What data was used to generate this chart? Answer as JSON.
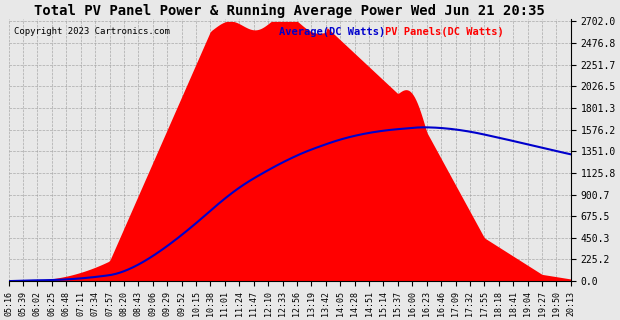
{
  "title": "Total PV Panel Power & Running Average Power Wed Jun 21 20:35",
  "copyright": "Copyright 2023 Cartronics.com",
  "legend_avg": "Average(DC Watts)",
  "legend_pv": "PV Panels(DC Watts)",
  "ymax": 2702.0,
  "ymin": 0.0,
  "yticks": [
    0.0,
    225.2,
    450.3,
    675.5,
    900.7,
    1125.8,
    1351.0,
    1576.2,
    1801.3,
    2026.5,
    2251.7,
    2476.8,
    2702.0
  ],
  "bg_color": "#e8e8e8",
  "fill_color": "#ff0000",
  "avg_color": "#0000cc",
  "panel_color": "#ff0000",
  "x_labels": [
    "05:16",
    "05:39",
    "06:02",
    "06:25",
    "06:48",
    "07:11",
    "07:34",
    "07:57",
    "08:20",
    "08:43",
    "09:06",
    "09:29",
    "09:52",
    "10:15",
    "10:38",
    "11:01",
    "11:24",
    "11:47",
    "12:10",
    "12:33",
    "12:56",
    "13:19",
    "13:42",
    "14:05",
    "14:28",
    "14:51",
    "15:14",
    "15:37",
    "16:00",
    "16:23",
    "16:46",
    "17:09",
    "17:32",
    "17:55",
    "18:18",
    "18:41",
    "19:04",
    "19:27",
    "19:50",
    "20:13"
  ]
}
